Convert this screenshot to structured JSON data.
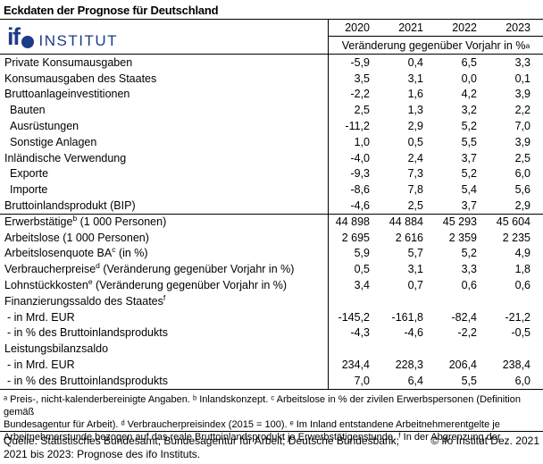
{
  "colors": {
    "brand_blue": "#1d3c87",
    "border": "#000000",
    "text": "#000000",
    "background": "#ffffff"
  },
  "title": "Eckdaten der Prognose für Deutschland",
  "logo": {
    "ifo_text": "if",
    "o_shape": "filled-circle",
    "institut_text": "INSTITUT"
  },
  "header": {
    "years": [
      "2020",
      "2021",
      "2022",
      "2023"
    ],
    "subheader": "Veränderung gegenüber Vorjahr in %",
    "subheader_sup": "a"
  },
  "table": {
    "rows": [
      {
        "pre": "Private Konsumausgaben",
        "values": [
          "-5,9",
          "0,4",
          "6,5",
          "3,3"
        ]
      },
      {
        "pre": "Konsumausgaben des Staates",
        "values": [
          "3,5",
          "3,1",
          "0,0",
          "0,1"
        ]
      },
      {
        "pre": "Bruttoanlageinvestitionen",
        "values": [
          "-2,2",
          "1,6",
          "4,2",
          "3,9"
        ]
      },
      {
        "pre": "Bauten",
        "indent": true,
        "values": [
          "2,5",
          "1,3",
          "3,2",
          "2,2"
        ]
      },
      {
        "pre": "Ausrüstungen",
        "indent": true,
        "values": [
          "-11,2",
          "2,9",
          "5,2",
          "7,0"
        ]
      },
      {
        "pre": "Sonstige Anlagen",
        "indent": true,
        "values": [
          "1,0",
          "0,5",
          "5,5",
          "3,9"
        ]
      },
      {
        "pre": "Inländische Verwendung",
        "values": [
          "-4,0",
          "2,4",
          "3,7",
          "2,5"
        ]
      },
      {
        "pre": "Exporte",
        "indent": true,
        "values": [
          "-9,3",
          "7,3",
          "5,2",
          "6,0"
        ]
      },
      {
        "pre": "Importe",
        "indent": true,
        "values": [
          "-8,6",
          "7,8",
          "5,4",
          "5,6"
        ]
      },
      {
        "pre": "Bruttoinlandsprodukt (BIP)",
        "values": [
          "-4,6",
          "2,5",
          "3,7",
          "2,9"
        ]
      },
      {
        "pre": "Erwerbstätige",
        "sup": "b",
        "post": " (1 000 Personen)",
        "topline": true,
        "values": [
          "44 898",
          "44 884",
          "45 293",
          "45 604"
        ]
      },
      {
        "pre": "Arbeitslose (1 000 Personen)",
        "values": [
          "2 695",
          "2 616",
          "2 359",
          "2 235"
        ]
      },
      {
        "pre": "Arbeitslosenquote BA",
        "sup": "c",
        "post": " (in %)",
        "values": [
          "5,9",
          "5,7",
          "5,2",
          "4,9"
        ]
      },
      {
        "pre": "Verbraucherpreise",
        "sup": "d",
        "post": " (Veränderung gegenüber Vorjahr in %)",
        "values": [
          "0,5",
          "3,1",
          "3,3",
          "1,8"
        ]
      },
      {
        "pre": "Lohnstückkosten",
        "sup": "e",
        "post": " (Veränderung gegenüber Vorjahr in %)",
        "values": [
          "3,4",
          "0,7",
          "0,6",
          "0,6"
        ]
      },
      {
        "pre": "Finanzierungssaldo des Staates",
        "sup": "f",
        "values": [
          "",
          "",
          "",
          ""
        ]
      },
      {
        "pre": "- in Mrd. EUR",
        "dash": true,
        "values": [
          "-145,2",
          "-161,8",
          "-82,4",
          "-21,2"
        ]
      },
      {
        "pre": "- in % des Bruttoinlandsprodukts",
        "dash": true,
        "values": [
          "-4,3",
          "-4,6",
          "-2,2",
          "-0,5"
        ]
      },
      {
        "pre": "Leistungsbilanzsaldo",
        "values": [
          "",
          "",
          "",
          ""
        ]
      },
      {
        "pre": "- in Mrd. EUR",
        "dash": true,
        "values": [
          "234,4",
          "228,3",
          "206,4",
          "238,4"
        ]
      },
      {
        "pre": "- in % des Bruttoinlandsprodukts",
        "dash": true,
        "values": [
          "7,0",
          "6,4",
          "5,5",
          "6,0"
        ]
      }
    ]
  },
  "footnotes": {
    "lines": [
      "ᵃ Preis-, nicht-kalenderbereinigte Angaben. ᵇ Inlandskonzept. ᶜ Arbeitslose in % der zivilen Erwerbspersonen (Definition gemäß",
      "Bundesagentur für Arbeit). ᵈ Verbraucherpreisindex (2015 = 100). ᵉ Im Inland entstandene Arbeitnehmerentgelte je",
      "Arbeitnehmerstunde bezogen auf das reale Bruttoinlandsprodukt je Erwerbstätigenstunde. ᶠ In der Abgrenzung der"
    ]
  },
  "source": {
    "quelle": "Quelle: Statistisches Bundesamt; Bundesagentur für Arbeit; Deutsche Bundesbank;",
    "copyright": "© ifo Institut Dez. 2021",
    "line2": "2021 bis 2023: Prognose des ifo Instituts."
  }
}
